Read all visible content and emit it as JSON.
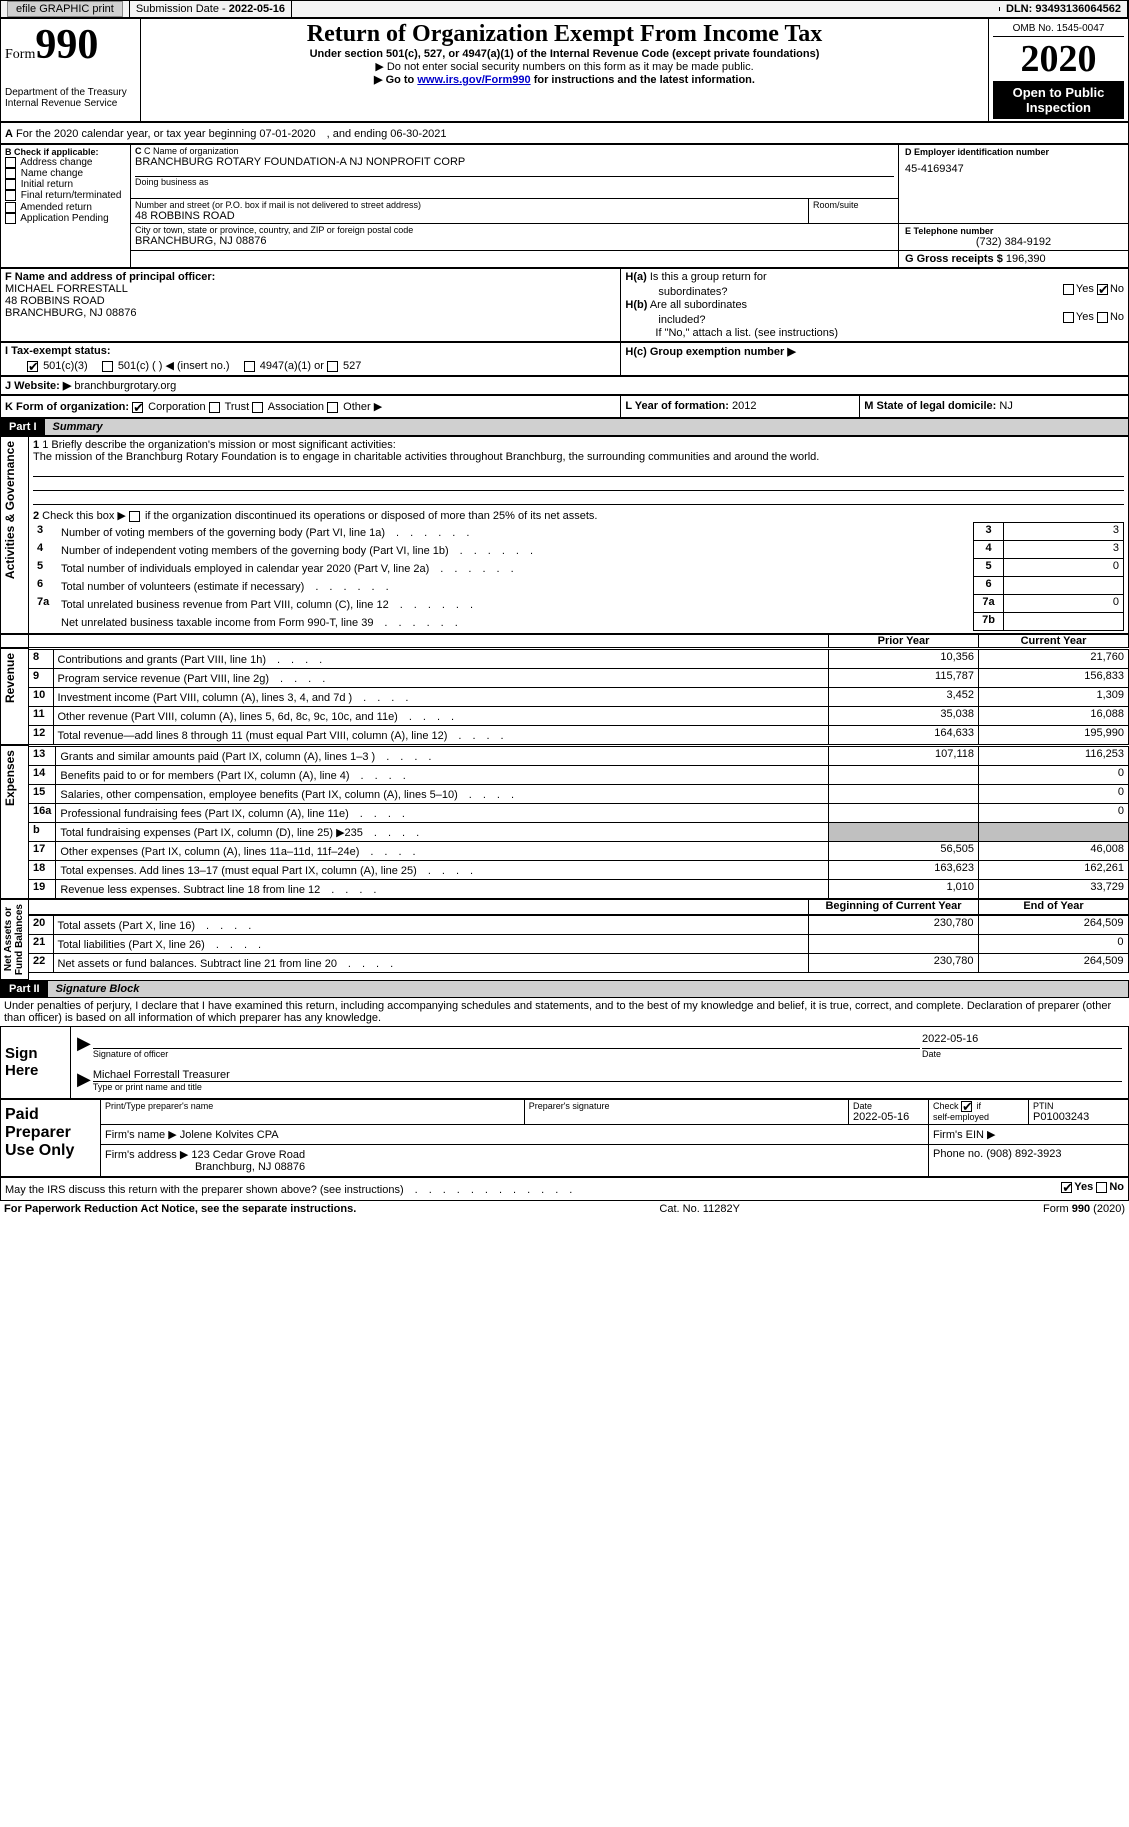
{
  "topbar": {
    "efile": "efile GRAPHIC print",
    "submission_label": "Submission Date -",
    "submission_date": "2022-05-16",
    "dln_label": "DLN:",
    "dln": "93493136064562"
  },
  "header": {
    "form_word": "Form",
    "form_num": "990",
    "dept": "Department of the Treasury\nInternal Revenue Service",
    "title": "Return of Organization Exempt From Income Tax",
    "subtitle": "Under section 501(c), 527, or 4947(a)(1) of the Internal Revenue Code (except private foundations)",
    "warn": "▶ Do not enter social security numbers on this form as it may be made public.",
    "goto_pre": "▶ Go to ",
    "goto_link": "www.irs.gov/Form990",
    "goto_post": " for instructions and the latest information.",
    "omb": "OMB No. 1545-0047",
    "year": "2020",
    "open": "Open to Public\nInspection"
  },
  "period": {
    "line": "For the 2020 calendar year, or tax year beginning 07-01-2020　, and ending 06-30-2021"
  },
  "boxB": {
    "label": "B Check if applicable:",
    "opts": [
      "Address change",
      "Name change",
      "Initial return",
      "Final return/terminated",
      "Amended return",
      "Application Pending"
    ]
  },
  "boxC": {
    "label_name": "C Name of organization",
    "name": "BRANCHBURG ROTARY FOUNDATION-A NJ NONPROFIT CORP",
    "dba_label": "Doing business as",
    "addr_label": "Number and street (or P.O. box if mail is not delivered to street address)",
    "room_label": "Room/suite",
    "addr": "48 ROBBINS ROAD",
    "city_label": "City or town, state or province, country, and ZIP or foreign postal code",
    "city": "BRANCHBURG, NJ  08876"
  },
  "boxD": {
    "label": "D Employer identification number",
    "val": "45-4169347"
  },
  "boxE": {
    "label": "E Telephone number",
    "val": "(732) 384-9192"
  },
  "boxG": {
    "label": "G Gross receipts $",
    "val": "196,390"
  },
  "boxF": {
    "label": "F  Name and address of principal officer:",
    "l1": "MICHAEL FORRESTALL",
    "l2": "48 ROBBINS ROAD",
    "l3": "BRANCHBURG, NJ  08876"
  },
  "boxH": {
    "a_label": "H(a)  Is this a group return for subordinates?",
    "b_label": "H(b)  Are all subordinates included?",
    "b_note": "If \"No,\" attach a list. (see instructions)",
    "c_label": "H(c)  Group exemption number ▶",
    "yes": "Yes",
    "no": "No"
  },
  "boxI": {
    "label": "I     Tax-exempt status:",
    "o1": "501(c)(3)",
    "o2": "501(c) (  ) ◀ (insert no.)",
    "o3": "4947(a)(1) or",
    "o4": "527"
  },
  "boxJ": {
    "label": "J    Website: ▶",
    "val": "branchburgrotary.org"
  },
  "boxK": {
    "label": "K Form of organization:",
    "o1": "Corporation",
    "o2": "Trust",
    "o3": "Association",
    "o4": "Other ▶"
  },
  "boxL": {
    "label": "L Year of formation:",
    "val": "2012"
  },
  "boxM": {
    "label": "M State of legal domicile:",
    "val": "NJ"
  },
  "part1": {
    "num": "Part I",
    "title": "Summary",
    "q1_label": "1  Briefly describe the organization's mission or most significant activities:",
    "q1_text": "The mission of the Branchburg Rotary Foundation is to engage in charitable activities throughout Branchburg, the surrounding communities and around the world.",
    "q2": "2   Check this box ▶       if the organization discontinued its operations or disposed of more than 25% of its net assets.",
    "vert_ag": "Activities & Governance",
    "vert_rev": "Revenue",
    "vert_exp": "Expenses",
    "vert_net": "Net Assets or\nFund Balances",
    "prior": "Prior Year",
    "current": "Current Year",
    "beg": "Beginning of Current Year",
    "end": "End of Year",
    "rows_gov": [
      {
        "n": "3",
        "t": "Number of voting members of the governing body (Part VI, line 1a)",
        "box": "3",
        "v": "3"
      },
      {
        "n": "4",
        "t": "Number of independent voting members of the governing body (Part VI, line 1b)",
        "box": "4",
        "v": "3"
      },
      {
        "n": "5",
        "t": "Total number of individuals employed in calendar year 2020 (Part V, line 2a)",
        "box": "5",
        "v": "0"
      },
      {
        "n": "6",
        "t": "Total number of volunteers (estimate if necessary)",
        "box": "6",
        "v": ""
      },
      {
        "n": "7a",
        "t": "Total unrelated business revenue from Part VIII, column (C), line 12",
        "box": "7a",
        "v": "0"
      },
      {
        "n": "",
        "t": "Net unrelated business taxable income from Form 990-T, line 39",
        "box": "7b",
        "v": ""
      }
    ],
    "rows_rev": [
      {
        "n": "8",
        "t": "Contributions and grants (Part VIII, line 1h)",
        "p": "10,356",
        "c": "21,760"
      },
      {
        "n": "9",
        "t": "Program service revenue (Part VIII, line 2g)",
        "p": "115,787",
        "c": "156,833"
      },
      {
        "n": "10",
        "t": "Investment income (Part VIII, column (A), lines 3, 4, and 7d )",
        "p": "3,452",
        "c": "1,309"
      },
      {
        "n": "11",
        "t": "Other revenue (Part VIII, column (A), lines 5, 6d, 8c, 9c, 10c, and 11e)",
        "p": "35,038",
        "c": "16,088"
      },
      {
        "n": "12",
        "t": "Total revenue—add lines 8 through 11 (must equal Part VIII, column (A), line 12)",
        "p": "164,633",
        "c": "195,990"
      }
    ],
    "rows_exp": [
      {
        "n": "13",
        "t": "Grants and similar amounts paid (Part IX, column (A), lines 1–3 )",
        "p": "107,118",
        "c": "116,253"
      },
      {
        "n": "14",
        "t": "Benefits paid to or for members (Part IX, column (A), line 4)",
        "p": "",
        "c": "0"
      },
      {
        "n": "15",
        "t": "Salaries, other compensation, employee benefits (Part IX, column (A), lines 5–10)",
        "p": "",
        "c": "0"
      },
      {
        "n": "16a",
        "t": "Professional fundraising fees (Part IX, column (A), line 11e)",
        "p": "",
        "c": "0"
      },
      {
        "n": "b",
        "t": "Total fundraising expenses (Part IX, column (D), line 25) ▶235",
        "p": "GREY",
        "c": "GREY"
      },
      {
        "n": "17",
        "t": "Other expenses (Part IX, column (A), lines 11a–11d, 11f–24e)",
        "p": "56,505",
        "c": "46,008"
      },
      {
        "n": "18",
        "t": "Total expenses. Add lines 13–17 (must equal Part IX, column (A), line 25)",
        "p": "163,623",
        "c": "162,261"
      },
      {
        "n": "19",
        "t": "Revenue less expenses. Subtract line 18 from line 12",
        "p": "1,010",
        "c": "33,729"
      }
    ],
    "rows_net": [
      {
        "n": "20",
        "t": "Total assets (Part X, line 16)",
        "p": "230,780",
        "c": "264,509"
      },
      {
        "n": "21",
        "t": "Total liabilities (Part X, line 26)",
        "p": "",
        "c": "0"
      },
      {
        "n": "22",
        "t": "Net assets or fund balances. Subtract line 21 from line 20",
        "p": "230,780",
        "c": "264,509"
      }
    ]
  },
  "part2": {
    "num": "Part II",
    "title": "Signature Block",
    "decl": "Under penalties of perjury, I declare that I have examined this return, including accompanying schedules and statements, and to the best of my knowledge and belief, it is true, correct, and complete. Declaration of preparer (other than officer) is based on all information of which preparer has any knowledge."
  },
  "sign": {
    "label": "Sign\nHere",
    "sig_of": "Signature of officer",
    "date_label": "Date",
    "date": "2022-05-16",
    "name": "Michael Forrestall Treasurer",
    "type_label": "Type or print name and title"
  },
  "paid": {
    "label": "Paid\nPreparer\nUse Only",
    "h1": "Print/Type preparer's name",
    "h2": "Preparer's signature",
    "h3": "Date",
    "h3v": "2022-05-16",
    "h4": "Check        if self-employed",
    "h5": "PTIN",
    "h5v": "P01003243",
    "firm_name_l": "Firm's name     ▶",
    "firm_name": "Jolene Kolvites CPA",
    "firm_ein_l": "Firm's EIN ▶",
    "firm_addr_l": "Firm's address ▶",
    "firm_addr1": "123 Cedar Grove Road",
    "firm_addr2": "Branchburg, NJ  08876",
    "phone_l": "Phone no.",
    "phone": "(908) 892-3923"
  },
  "discuss": {
    "text": "May the IRS discuss this return with the preparer shown above? (see instructions)",
    "yes": "Yes",
    "no": "No"
  },
  "footer": {
    "left": "For Paperwork Reduction Act Notice, see the separate instructions.",
    "mid": "Cat. No. 11282Y",
    "right": "Form 990 (2020)"
  }
}
